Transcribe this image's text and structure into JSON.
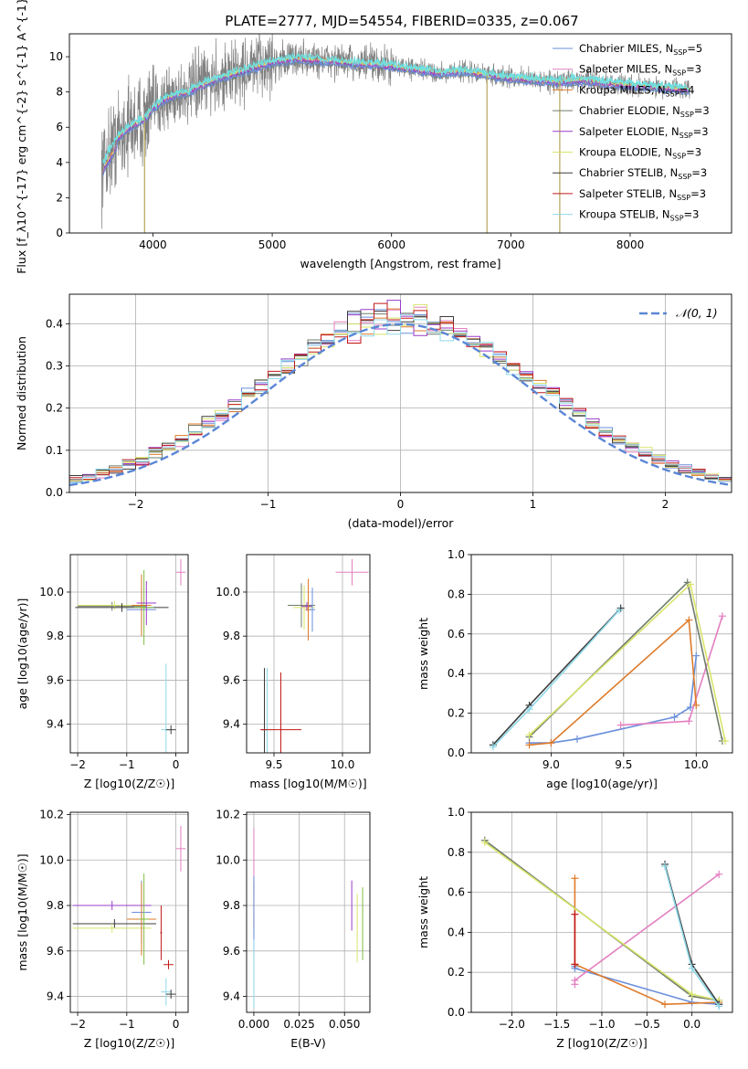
{
  "title": "PLATE=2777, MJD=54554, FIBERID=0335, z=0.067",
  "colors": {
    "cMILES": "#6a8fdc",
    "sMILES": "#e37fc0",
    "kMILES": "#de7b2a",
    "cELODIE": "#6f7d6b",
    "sELODIE": "#9a3cc8",
    "kELODIE": "#d8e46a",
    "cSTELIB": "#3c3c3c",
    "sSTELIB": "#c21a1a",
    "kSTELIB": "#8fd8e8",
    "gauss": "#5b86d6",
    "data": "#808080",
    "cyan": "#6fe0e0",
    "green": "#7fbf3f",
    "olive": "#7d7d40"
  },
  "legend": [
    {
      "label": "Chabrier MILES, N_{SSP}=5",
      "color": "cMILES"
    },
    {
      "label": "Salpeter MILES, N_{SSP}=3",
      "color": "sMILES"
    },
    {
      "label": "Kroupa MILES, N_{SSP}=4",
      "color": "kMILES"
    },
    {
      "label": "Chabrier ELODIE, N_{SSP}=3",
      "color": "cELODIE"
    },
    {
      "label": "Salpeter ELODIE, N_{SSP}=3",
      "color": "sELODIE"
    },
    {
      "label": "Kroupa ELODIE, N_{SSP}=3",
      "color": "kELODIE"
    },
    {
      "label": "Chabrier STELIB, N_{SSP}=3",
      "color": "cSTELIB"
    },
    {
      "label": "Salpeter STELIB, N_{SSP}=3",
      "color": "sSTELIB"
    },
    {
      "label": "Kroupa STELIB, N_{SSP}=3",
      "color": "kSTELIB"
    }
  ],
  "chart_data": [
    {
      "id": "spectrum",
      "type": "line",
      "xlabel": "wavelength [Angstrom, rest frame]",
      "ylabel": "Flux [f_λ10^{-17} erg cm^{-2} s^{-1} A^{-1}]",
      "xlim": [
        3300,
        8850
      ],
      "ylim": [
        0,
        11.3
      ],
      "xticks": [
        4000,
        5000,
        6000,
        7000,
        8000
      ],
      "yticks": [
        0,
        2,
        4,
        6,
        8,
        10
      ],
      "model_knots": [
        [
          3560,
          3.6
        ],
        [
          3600,
          4.2
        ],
        [
          3700,
          5.4
        ],
        [
          3800,
          6.0
        ],
        [
          3900,
          6.4
        ],
        [
          3950,
          6.6
        ],
        [
          4000,
          7.1
        ],
        [
          4100,
          7.6
        ],
        [
          4200,
          7.9
        ],
        [
          4300,
          8.0
        ],
        [
          4400,
          8.4
        ],
        [
          4600,
          8.9
        ],
        [
          4800,
          9.3
        ],
        [
          5000,
          9.7
        ],
        [
          5200,
          9.9
        ],
        [
          5400,
          9.8
        ],
        [
          5600,
          9.7
        ],
        [
          5800,
          9.6
        ],
        [
          6000,
          9.5
        ],
        [
          6200,
          9.3
        ],
        [
          6400,
          9.1
        ],
        [
          6600,
          9.2
        ],
        [
          6800,
          9.0
        ],
        [
          7000,
          8.8
        ],
        [
          7200,
          8.7
        ],
        [
          7400,
          8.6
        ],
        [
          7600,
          8.7
        ],
        [
          7800,
          8.5
        ],
        [
          8000,
          8.4
        ],
        [
          8200,
          8.3
        ],
        [
          8400,
          8.2
        ],
        [
          8500,
          8.1
        ]
      ]
    },
    {
      "id": "residuals",
      "type": "histogram",
      "xlabel": "(data-model)/error",
      "ylabel": "Normed distribution",
      "xlim": [
        -2.5,
        2.5
      ],
      "ylim": [
        0,
        0.47
      ],
      "xticks": [
        -2,
        -1,
        0,
        1,
        2
      ],
      "yticks": [
        0.0,
        0.1,
        0.2,
        0.3,
        0.4
      ],
      "gauss_label": "𝒩(0, 1)"
    },
    {
      "id": "age_Z",
      "type": "errorbar",
      "xlabel": "Z [log10(Z/Z☉)]",
      "ylabel": "age [log10(age/yr)]",
      "xlim": [
        -2.15,
        0.25
      ],
      "ylim": [
        9.27,
        10.17
      ],
      "xticks": [
        -2,
        -1,
        0
      ],
      "yticks": [
        9.4,
        9.6,
        9.8,
        10.0
      ],
      "points": [
        {
          "x": -1.3,
          "y": 9.935,
          "xerr": 0.7,
          "yerr": 0.02,
          "color": "cELODIE"
        },
        {
          "x": -1.25,
          "y": 9.94,
          "xerr": 0.75,
          "yerr": 0.02,
          "color": "kELODIE"
        },
        {
          "x": -1.1,
          "y": 9.93,
          "xerr": 0.95,
          "yerr": 0.02,
          "color": "cSTELIB"
        },
        {
          "x": -0.7,
          "y": 9.92,
          "xerr": 0.3,
          "yerr": 0.1,
          "color": "cMILES"
        },
        {
          "x": -0.7,
          "y": 9.94,
          "xerr": 0.2,
          "yerr": 0.14,
          "color": "kMILES"
        },
        {
          "x": -0.65,
          "y": 9.93,
          "xerr": 0.2,
          "yerr": 0.17,
          "color": "green"
        },
        {
          "x": -0.6,
          "y": 9.95,
          "xerr": 0.2,
          "yerr": 0.1,
          "color": "sELODIE"
        },
        {
          "x": -0.2,
          "y": 9.375,
          "xerr": 0.1,
          "yerr": 0.3,
          "color": "kSTELIB"
        },
        {
          "x": -0.1,
          "y": 9.375,
          "xerr": 0.1,
          "yerr": 0.02,
          "color": "cSTELIB"
        },
        {
          "x": 0.1,
          "y": 10.09,
          "xerr": 0.1,
          "yerr": 0.06,
          "color": "sMILES"
        }
      ]
    },
    {
      "id": "age_mass",
      "type": "errorbar",
      "xlabel": "mass [log10(M/M☉)]",
      "ylabel": "",
      "xlim": [
        9.3,
        10.2
      ],
      "ylim": [
        9.27,
        10.17
      ],
      "xticks": [
        9.5,
        10.0
      ],
      "yticks": [
        9.4,
        9.6,
        9.8,
        10.0
      ],
      "points": [
        {
          "x": 9.7,
          "y": 9.94,
          "xerr": 0.1,
          "yerr": 0.1,
          "color": "cELODIE"
        },
        {
          "x": 9.72,
          "y": 9.93,
          "xerr": 0.08,
          "yerr": 0.1,
          "color": "kELODIE"
        },
        {
          "x": 9.74,
          "y": 9.935,
          "xerr": 0.04,
          "yerr": 0.02,
          "color": "sELODIE"
        },
        {
          "x": 9.75,
          "y": 9.92,
          "xerr": 0.02,
          "yerr": 0.14,
          "color": "kMILES"
        },
        {
          "x": 9.78,
          "y": 9.92,
          "xerr": 0.02,
          "yerr": 0.1,
          "color": "cMILES"
        },
        {
          "x": 10.07,
          "y": 10.09,
          "xerr": 0.12,
          "yerr": 0.06,
          "color": "sMILES"
        },
        {
          "x": 9.43,
          "y": 9.375,
          "xerr": 0.02,
          "yerr": 0.28,
          "color": "cSTELIB"
        },
        {
          "x": 9.45,
          "y": 9.375,
          "xerr": 0.02,
          "yerr": 0.28,
          "color": "kSTELIB"
        },
        {
          "x": 9.55,
          "y": 9.375,
          "xerr": 0.15,
          "yerr": 0.26,
          "color": "sSTELIB"
        }
      ]
    },
    {
      "id": "weight_age",
      "type": "line",
      "xlabel": "age [log10(age/yr)]",
      "ylabel": "mass weight",
      "xlim": [
        8.45,
        10.25
      ],
      "ylim": [
        0,
        1.0
      ],
      "xticks": [
        9.0,
        9.5,
        10.0
      ],
      "yticks": [
        0.0,
        0.2,
        0.4,
        0.6,
        0.8,
        1.0
      ],
      "series": [
        {
          "color": "cMILES",
          "x": [
            8.85,
            9.0,
            9.18,
            9.85,
            9.96,
            10.0
          ],
          "y": [
            0.05,
            0.05,
            0.07,
            0.18,
            0.23,
            0.49
          ]
        },
        {
          "color": "sMILES",
          "x": [
            9.48,
            9.95,
            10.18
          ],
          "y": [
            0.14,
            0.16,
            0.69
          ]
        },
        {
          "color": "kMILES",
          "x": [
            8.85,
            9.0,
            9.95,
            10.0
          ],
          "y": [
            0.04,
            0.05,
            0.67,
            0.24
          ]
        },
        {
          "color": "cELODIE",
          "x": [
            8.85,
            9.94,
            10.18
          ],
          "y": [
            0.08,
            0.86,
            0.06
          ]
        },
        {
          "color": "kELODIE",
          "x": [
            8.85,
            9.96,
            10.2
          ],
          "y": [
            0.09,
            0.85,
            0.06
          ]
        },
        {
          "color": "cSTELIB",
          "x": [
            8.6,
            8.85,
            9.48
          ],
          "y": [
            0.04,
            0.24,
            0.73
          ]
        },
        {
          "color": "kSTELIB",
          "x": [
            8.6,
            8.85,
            9.47
          ],
          "y": [
            0.03,
            0.22,
            0.72
          ]
        }
      ]
    },
    {
      "id": "mass_Z",
      "type": "errorbar",
      "xlabel": "Z [log10(Z/Z☉)]",
      "ylabel": "mass [log10(M/M☉)]",
      "xlim": [
        -2.15,
        0.25
      ],
      "ylim": [
        9.33,
        10.21
      ],
      "xticks": [
        -2,
        -1,
        0
      ],
      "yticks": [
        9.4,
        9.6,
        9.8,
        10.0,
        10.2
      ],
      "points": [
        {
          "x": -1.3,
          "y": 9.8,
          "xerr": 0.8,
          "yerr": 0.02,
          "color": "sELODIE"
        },
        {
          "x": -1.25,
          "y": 9.72,
          "xerr": 0.85,
          "yerr": 0.02,
          "color": "cSTELIB"
        },
        {
          "x": -1.3,
          "y": 9.7,
          "xerr": 0.8,
          "yerr": 0.02,
          "color": "kELODIE"
        },
        {
          "x": -0.7,
          "y": 9.77,
          "xerr": 0.2,
          "yerr": 0.14,
          "color": "cMILES"
        },
        {
          "x": -0.7,
          "y": 9.74,
          "xerr": 0.3,
          "yerr": 0.16,
          "color": "kMILES"
        },
        {
          "x": -0.65,
          "y": 9.74,
          "xerr": 0.1,
          "yerr": 0.2,
          "color": "green"
        },
        {
          "x": -0.3,
          "y": 9.68,
          "xerr": 0.02,
          "yerr": 0.12,
          "color": "sSTELIB"
        },
        {
          "x": -0.2,
          "y": 9.42,
          "xerr": 0.1,
          "yerr": 0.06,
          "color": "kSTELIB"
        },
        {
          "x": -0.15,
          "y": 9.54,
          "xerr": 0.1,
          "yerr": 0.02,
          "color": "sSTELIB"
        },
        {
          "x": -0.1,
          "y": 9.41,
          "xerr": 0.1,
          "yerr": 0.02,
          "color": "cSTELIB"
        },
        {
          "x": 0.1,
          "y": 10.05,
          "xerr": 0.1,
          "yerr": 0.1,
          "color": "sMILES"
        }
      ]
    },
    {
      "id": "mass_ebv",
      "type": "errorbar",
      "xlabel": "E(B-V)",
      "ylabel": "",
      "xlim": [
        -0.004,
        0.064
      ],
      "ylim": [
        9.33,
        10.21
      ],
      "xticks": [
        0.0,
        0.025,
        0.05
      ],
      "yticks": [
        9.4,
        9.6,
        9.8,
        10.0,
        10.2
      ],
      "points": [
        {
          "x": 0.0,
          "y": 10.0,
          "xerr": 0,
          "yerr": 0.14,
          "color": "sMILES"
        },
        {
          "x": 0.0,
          "y": 9.8,
          "xerr": 0,
          "yerr": 0.1,
          "color": "kMILES"
        },
        {
          "x": 0.0,
          "y": 9.75,
          "xerr": 0,
          "yerr": 0.18,
          "color": "cMILES"
        },
        {
          "x": 0.0,
          "y": 9.5,
          "xerr": 0,
          "yerr": 0.15,
          "color": "kSTELIB"
        },
        {
          "x": 0.054,
          "y": 9.8,
          "xerr": 0,
          "yerr": 0.11,
          "color": "sELODIE"
        },
        {
          "x": 0.057,
          "y": 9.7,
          "xerr": 0,
          "yerr": 0.15,
          "color": "kELODIE"
        },
        {
          "x": 0.06,
          "y": 9.72,
          "xerr": 0,
          "yerr": 0.16,
          "color": "green"
        }
      ]
    },
    {
      "id": "weight_Z",
      "type": "line",
      "xlabel": "Z [log10(Z/Z☉)]",
      "ylabel": "mass weight",
      "xlim": [
        -2.45,
        0.45
      ],
      "ylim": [
        0,
        1.0
      ],
      "xticks": [
        -2.0,
        -1.5,
        -1.0,
        -0.5,
        0.0
      ],
      "yticks": [
        0.0,
        0.2,
        0.4,
        0.6,
        0.8,
        1.0
      ],
      "series": [
        {
          "color": "cMILES",
          "x": [
            -1.3,
            -1.3,
            0.0,
            0.3
          ],
          "y": [
            0.23,
            0.22,
            0.05,
            0.04
          ]
        },
        {
          "color": "sMILES",
          "x": [
            -1.3,
            -1.3,
            0.3
          ],
          "y": [
            0.14,
            0.16,
            0.69
          ]
        },
        {
          "color": "kMILES",
          "x": [
            -1.3,
            -1.3,
            -0.3,
            0.3
          ],
          "y": [
            0.67,
            0.24,
            0.04,
            0.05
          ]
        },
        {
          "color": "cELODIE",
          "x": [
            -2.3,
            0.0,
            0.3
          ],
          "y": [
            0.86,
            0.08,
            0.06
          ]
        },
        {
          "color": "kELODIE",
          "x": [
            -2.3,
            0.0,
            0.3
          ],
          "y": [
            0.85,
            0.09,
            0.06
          ]
        },
        {
          "color": "cSTELIB",
          "x": [
            -0.3,
            0.0,
            0.3
          ],
          "y": [
            0.74,
            0.24,
            0.04
          ]
        },
        {
          "color": "kSTELIB",
          "x": [
            -0.3,
            0.0,
            0.3
          ],
          "y": [
            0.73,
            0.22,
            0.03
          ]
        },
        {
          "color": "sSTELIB",
          "x": [
            -1.3,
            -1.3
          ],
          "y": [
            0.49,
            0.24
          ]
        }
      ]
    }
  ]
}
